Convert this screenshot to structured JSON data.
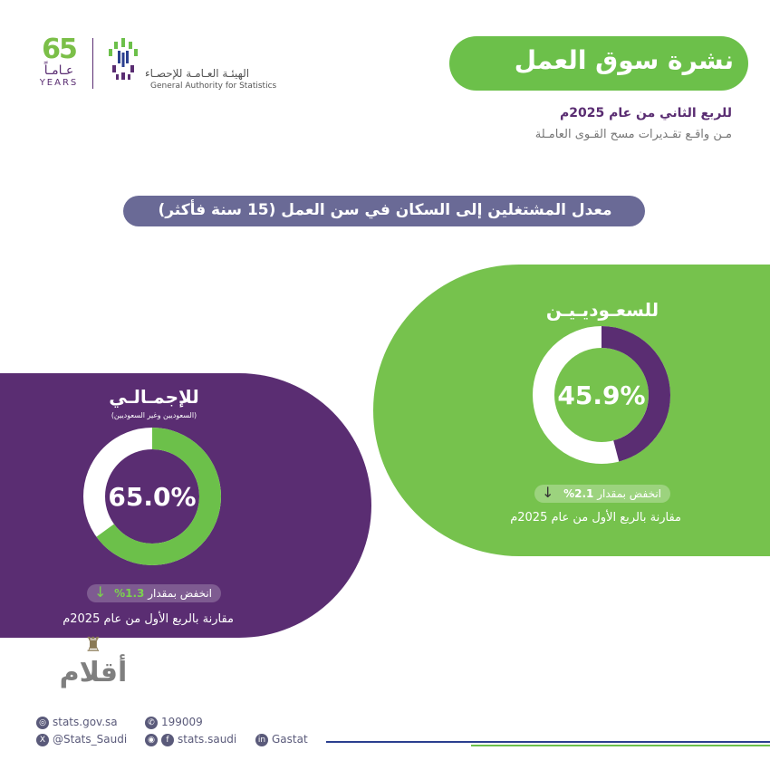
{
  "logo_65": {
    "number": "65",
    "arabic": "عـامـاً",
    "english": "YEARS"
  },
  "authority": {
    "arabic": "الهيئـة العـامـة للإحصـاء",
    "english": "General Authority for Statistics"
  },
  "header": {
    "title": "نشرة سوق العمل",
    "quarter": "للربع الثاني من عام 2025م",
    "source": "مـن واقـع تقـديرات مسح القـوى العامـلة"
  },
  "subtitle": "معدل المشتغلين إلى السكان في سن العمل (15 سنة فأكثر)",
  "saudis": {
    "label": "للسعـوديـيـن",
    "value_text": "45.9%",
    "value": 45.9,
    "change_text": "انخفض بمقدار",
    "change_pct": "2.1%",
    "compare": "مقارنة بالربع الأول من عام 2025م"
  },
  "total": {
    "label": "للإجمـالـي",
    "sublabel": "(السعوديين وغير السعوديين)",
    "value_text": "65.0%",
    "value": 65.0,
    "change_text": "انخفض بمقدار",
    "change_pct": "1.3%",
    "compare": "مقارنة بالربع الأول من عام 2025م"
  },
  "footer": {
    "website": "stats.gov.sa",
    "phone": "199009",
    "twitter": "@Stats_Saudi",
    "social": "stats.saudi",
    "linkedin": "Gastat"
  },
  "watermark": "أقلام",
  "colors": {
    "green": "#76c24d",
    "purple": "#5a2d72",
    "white": "#ffffff",
    "pill": "#6a6a96"
  }
}
